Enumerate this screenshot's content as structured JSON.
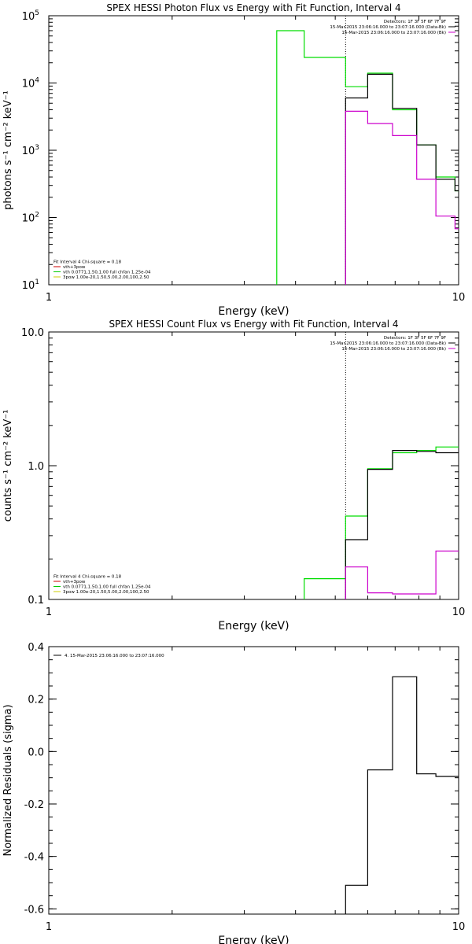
{
  "chart_data": [
    {
      "type": "line",
      "title": "SPEX HESSI Photon Flux vs Energy with Fit Function, Interval 4",
      "xlabel": "Energy (keV)",
      "ylabel": "photons s⁻¹ cm⁻² keV⁻¹",
      "xscale": "log",
      "yscale": "log",
      "xlim": [
        1,
        10
      ],
      "ylim": [
        10,
        100000
      ],
      "xticks": [
        {
          "v": 1,
          "label": "1"
        },
        {
          "v": 10,
          "label": "10"
        }
      ],
      "yticks": [
        {
          "v": 10,
          "label": "10",
          "exp": "1"
        },
        {
          "v": 100,
          "label": "10",
          "exp": "2"
        },
        {
          "v": 1000,
          "label": "10",
          "exp": "3"
        },
        {
          "v": 10000,
          "label": "10",
          "exp": "4"
        },
        {
          "v": 100000,
          "label": "10",
          "exp": "5"
        }
      ],
      "vline": 5.3,
      "legend_top": {
        "placement": "top-right",
        "lines": [
          {
            "text": "Detectors: 1F 3F 5F 6F 7F 9F",
            "color": ""
          },
          {
            "text": "15-Mar-2015 23:06:16.000 to 23:07:16.000 (Data-Bk)",
            "color": "#000000"
          },
          {
            "text": "15-Mar-2015 23:06:16.000 to 23:07:16.000 (Bk)",
            "color": "#cc00cc"
          }
        ]
      },
      "legend_bottom": {
        "placement": "bottom-left",
        "lines": [
          {
            "text": "Fit Interval 4   Chi-square = 0.18",
            "color": ""
          },
          {
            "text": "vth+3pow",
            "color": "#cc0000"
          },
          {
            "text": "vth 0.0771,1.50,1.00  full chfan 1.25e-04",
            "color": "#00cc00"
          },
          {
            "text": "3pow 1.00e-20,1.50,5.00,2.00,100,2.50",
            "color": "#cccc00"
          }
        ]
      },
      "series": [
        {
          "color": "#00dd00",
          "edges": [
            3.6,
            4.2,
            5.3,
            6.0,
            6.9,
            7.9,
            8.8,
            9.8,
            10.0
          ],
          "values": [
            60000,
            24000,
            8800,
            14000,
            4000,
            1200,
            400,
            250
          ]
        },
        {
          "color": "#000000",
          "edges": [
            5.3,
            6.0,
            6.9,
            7.9,
            8.8,
            9.8,
            10.0
          ],
          "values": [
            6000,
            13500,
            4200,
            1200,
            370,
            250
          ]
        },
        {
          "color": "#cc00cc",
          "edges": [
            5.3,
            6.0,
            6.9,
            7.9,
            8.8,
            9.8,
            10.0
          ],
          "values": [
            3800,
            2500,
            1650,
            370,
            105,
            68
          ]
        }
      ]
    },
    {
      "type": "line",
      "title": "SPEX HESSI Count Flux vs Energy with Fit Function, Interval 4",
      "xlabel": "Energy (keV)",
      "ylabel": "counts s⁻¹ cm⁻² keV⁻¹",
      "xscale": "log",
      "yscale": "log",
      "xlim": [
        1,
        10
      ],
      "ylim": [
        0.1,
        10
      ],
      "xticks": [
        {
          "v": 1,
          "label": "1"
        },
        {
          "v": 10,
          "label": "10"
        }
      ],
      "yticks": [
        {
          "v": 0.1,
          "label": "0.1"
        },
        {
          "v": 1,
          "label": "1.0"
        },
        {
          "v": 10,
          "label": "10.0"
        }
      ],
      "vline": 5.3,
      "legend_top": {
        "placement": "top-right",
        "lines": [
          {
            "text": "Detectors: 1F 3F 5F 6F 7F 9F",
            "color": ""
          },
          {
            "text": "15-Mar-2015 23:06:16.000 to 23:07:16.000 (Data-Bk)",
            "color": "#000000"
          },
          {
            "text": "15-Mar-2015 23:06:16.000 to 23:07:16.000 (Bk)",
            "color": "#cc00cc"
          }
        ]
      },
      "legend_bottom": {
        "placement": "bottom-left",
        "lines": [
          {
            "text": "Fit Interval 4   Chi-square = 0.18",
            "color": ""
          },
          {
            "text": "vth+3pow",
            "color": "#cc0000"
          },
          {
            "text": "vth 0.0771,1.50,1.00  full chfan 1.25e-04",
            "color": "#00cc00"
          },
          {
            "text": "3pow 1.00e-20,1.50,5.00,2.00,100,2.50",
            "color": "#cccc00"
          }
        ]
      },
      "series": [
        {
          "color": "#00dd00",
          "edges": [
            4.2,
            5.3,
            6.0,
            6.9,
            7.9,
            8.8,
            9.8,
            10.0
          ],
          "values": [
            0.143,
            0.42,
            0.95,
            1.25,
            1.3,
            1.38,
            1.38
          ]
        },
        {
          "color": "#000000",
          "edges": [
            5.3,
            6.0,
            6.9,
            7.9,
            8.8,
            9.8,
            10.0
          ],
          "values": [
            0.28,
            0.94,
            1.3,
            1.28,
            1.25,
            1.25
          ]
        },
        {
          "color": "#cc00cc",
          "edges": [
            5.3,
            6.0,
            6.9,
            7.9,
            8.8,
            9.8,
            10.0
          ],
          "values": [
            0.175,
            0.112,
            0.11,
            0.11,
            0.23,
            0.23
          ]
        }
      ]
    },
    {
      "type": "line",
      "title": "",
      "xlabel": "Energy (keV)",
      "ylabel": "Normalized Residuals (sigma)",
      "xscale": "log",
      "yscale": "linear",
      "xlim": [
        1,
        10
      ],
      "ylim": [
        -0.62,
        0.4
      ],
      "xticks": [
        {
          "v": 1,
          "label": "1"
        },
        {
          "v": 10,
          "label": "10"
        }
      ],
      "yticks": [
        {
          "v": -0.6,
          "label": "-0.6"
        },
        {
          "v": -0.4,
          "label": "-0.4"
        },
        {
          "v": -0.2,
          "label": "-0.2"
        },
        {
          "v": 0,
          "label": "0.0"
        },
        {
          "v": 0.2,
          "label": "0.2"
        },
        {
          "v": 0.4,
          "label": "0.4"
        }
      ],
      "legend_top": {
        "placement": "top-left",
        "lines": [
          {
            "text": "4. 15-Mar-2015 23:06:16.000 to 23:07:16.000",
            "color": "#000000"
          }
        ]
      },
      "series": [
        {
          "color": "#000000",
          "edges": [
            5.3,
            6.0,
            6.9,
            7.9,
            8.8,
            9.8,
            10.0
          ],
          "values": [
            -0.51,
            -0.07,
            0.285,
            -0.085,
            -0.095,
            -0.095
          ]
        }
      ]
    }
  ]
}
